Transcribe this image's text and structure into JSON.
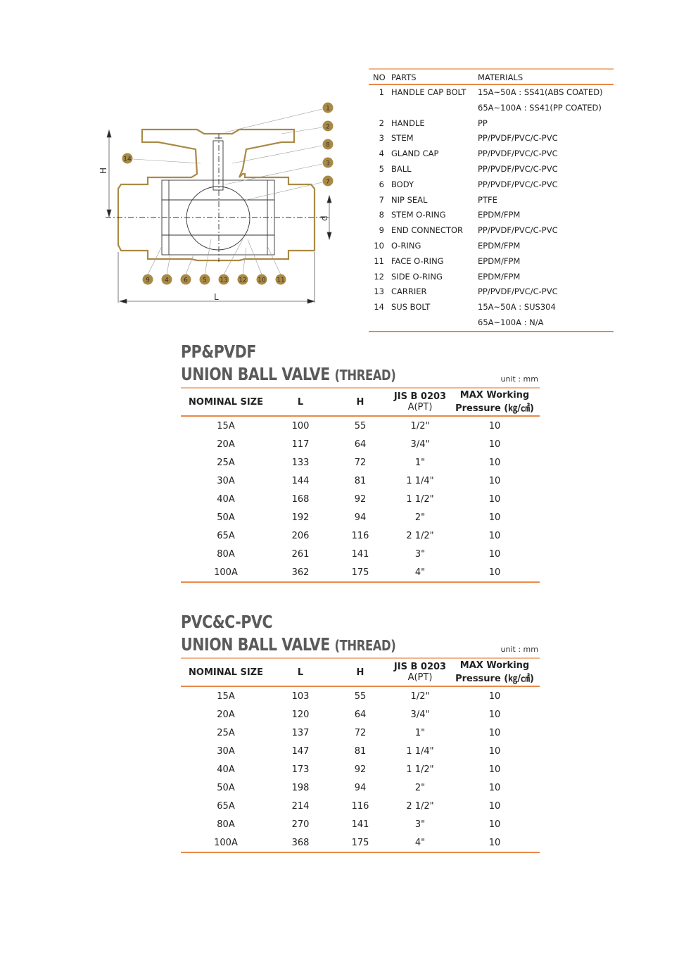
{
  "diagram": {
    "outline_color": "#a98a45",
    "callouts_right": [
      "1",
      "2",
      "8",
      "3",
      "7"
    ],
    "callout_left": "14",
    "callouts_bottom": [
      "9",
      "4",
      "6",
      "5",
      "13",
      "12",
      "10",
      "11"
    ],
    "dim_H": "H",
    "dim_d": "d",
    "dim_L": "L"
  },
  "parts": {
    "headers": {
      "no": "NO",
      "parts": "PARTS",
      "materials": "MATERIALS"
    },
    "rows": [
      {
        "no": "1",
        "part": "HANDLE CAP BOLT",
        "material": "15A~50A : SS41(ABS COATED)"
      },
      {
        "no": "",
        "part": "",
        "material": "65A~100A : SS41(PP COATED)"
      },
      {
        "no": "2",
        "part": "HANDLE",
        "material": "PP"
      },
      {
        "no": "3",
        "part": "STEM",
        "material": "PP/PVDF/PVC/C-PVC"
      },
      {
        "no": "4",
        "part": "GLAND CAP",
        "material": "PP/PVDF/PVC/C-PVC"
      },
      {
        "no": "5",
        "part": "BALL",
        "material": "PP/PVDF/PVC/C-PVC"
      },
      {
        "no": "6",
        "part": "BODY",
        "material": "PP/PVDF/PVC/C-PVC"
      },
      {
        "no": "7",
        "part": "NIP SEAL",
        "material": "PTFE"
      },
      {
        "no": "8",
        "part": "STEM O-RING",
        "material": "EPDM/FPM"
      },
      {
        "no": "9",
        "part": "END CONNECTOR",
        "material": "PP/PVDF/PVC/C-PVC"
      },
      {
        "no": "10",
        "part": "O-RING",
        "material": "EPDM/FPM"
      },
      {
        "no": "11",
        "part": "FACE O-RING",
        "material": "EPDM/FPM"
      },
      {
        "no": "12",
        "part": "SIDE O-RING",
        "material": "EPDM/FPM"
      },
      {
        "no": "13",
        "part": "CARRIER",
        "material": "PP/PVDF/PVC/C-PVC"
      },
      {
        "no": "14",
        "part": "SUS BOLT",
        "material": "15A~50A : SUS304"
      },
      {
        "no": "",
        "part": "",
        "material": "65A~100A : N/A"
      }
    ]
  },
  "sections": [
    {
      "title_line1": "PP&PVDF",
      "title_line2": "UNION BALL VALVE",
      "title_suffix": "(THREAD)",
      "unit": "unit : mm",
      "headers": [
        "NOMINAL SIZE",
        "L",
        "H",
        "JIS B 0203",
        "MAX Working"
      ],
      "subheaders": [
        "",
        "",
        "",
        "A(PT)",
        "Pressure (㎏/㎠)"
      ],
      "rows": [
        [
          "15A",
          "100",
          "55",
          "1/2\"",
          "10"
        ],
        [
          "20A",
          "117",
          "64",
          "3/4\"",
          "10"
        ],
        [
          "25A",
          "133",
          "72",
          "1\"",
          "10"
        ],
        [
          "30A",
          "144",
          "81",
          "1 1/4\"",
          "10"
        ],
        [
          "40A",
          "168",
          "92",
          "1 1/2\"",
          "10"
        ],
        [
          "50A",
          "192",
          "94",
          "2\"",
          "10"
        ],
        [
          "65A",
          "206",
          "116",
          "2 1/2\"",
          "10"
        ],
        [
          "80A",
          "261",
          "141",
          "3\"",
          "10"
        ],
        [
          "100A",
          "362",
          "175",
          "4\"",
          "10"
        ]
      ]
    },
    {
      "title_line1": "PVC&C-PVC",
      "title_line2": "UNION BALL VALVE",
      "title_suffix": "(THREAD)",
      "unit": "unit : mm",
      "headers": [
        "NOMINAL SIZE",
        "L",
        "H",
        "JIS B 0203",
        "MAX Working"
      ],
      "subheaders": [
        "",
        "",
        "",
        "A(PT)",
        "Pressure (㎏/㎠)"
      ],
      "rows": [
        [
          "15A",
          "103",
          "55",
          "1/2\"",
          "10"
        ],
        [
          "20A",
          "120",
          "64",
          "3/4\"",
          "10"
        ],
        [
          "25A",
          "137",
          "72",
          "1\"",
          "10"
        ],
        [
          "30A",
          "147",
          "81",
          "1 1/4\"",
          "10"
        ],
        [
          "40A",
          "173",
          "92",
          "1 1/2\"",
          "10"
        ],
        [
          "50A",
          "198",
          "94",
          "2\"",
          "10"
        ],
        [
          "65A",
          "214",
          "116",
          "2 1/2\"",
          "10"
        ],
        [
          "80A",
          "270",
          "141",
          "3\"",
          "10"
        ],
        [
          "100A",
          "368",
          "175",
          "4\"",
          "10"
        ]
      ]
    }
  ]
}
